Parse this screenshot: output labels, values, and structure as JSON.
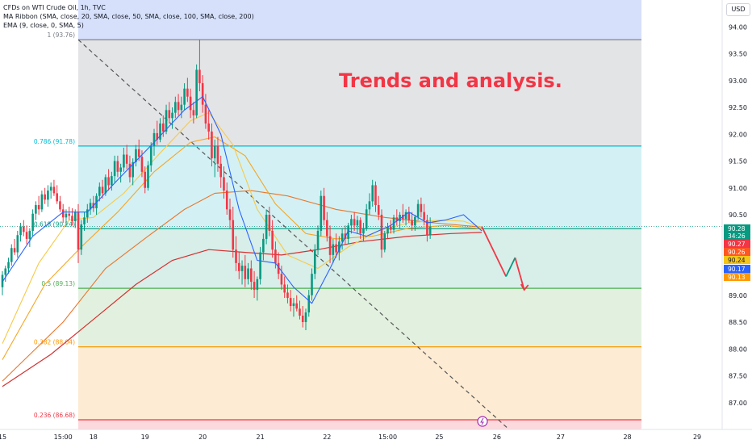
{
  "header": {
    "line1": "CFDs on WTI Crude Oil, 1h, TVC",
    "line2": "MA Ribbon (SMA, close, 20, SMA, close, 50, SMA, close, 100, SMA, close, 200)",
    "line3": "EMA (9, close, 0, SMA, 5)"
  },
  "annotation": "Trends and analysis.",
  "currency": "USD",
  "colors": {
    "up": "#089981",
    "down": "#f23645",
    "ema": "#2962ff",
    "ma20": "#f7c948",
    "ma50": "#f5a623",
    "ma100": "#e8772e",
    "ma200": "#d63030",
    "fib1_line": "#787b86",
    "fib786": "#00bcd4",
    "fib618": "#089981",
    "fib5": "#4caf50",
    "fib382": "#ff9800",
    "fib236": "#f23645"
  },
  "price_badges": [
    {
      "text": "90.28",
      "color": "#089981"
    },
    {
      "text": "34:26",
      "color": "#089981"
    },
    {
      "text": "90.27",
      "color": "#f23645"
    },
    {
      "text": "90.26",
      "color": "#ff5722"
    },
    {
      "text": "90.24",
      "color": "#f5c518"
    },
    {
      "text": "90.17",
      "color": "#2962ff"
    },
    {
      "text": "90.13",
      "color": "#ff9800"
    }
  ],
  "chart_data": {
    "type": "candlestick",
    "symbol": "CFDs on WTI Crude Oil",
    "interval": "1h",
    "ylim": [
      86.5,
      94.5
    ],
    "yticks": [
      87.0,
      87.5,
      88.0,
      88.5,
      89.0,
      89.5,
      90.0,
      90.5,
      91.0,
      91.5,
      92.0,
      92.5,
      93.0,
      93.5,
      94.0
    ],
    "ytick_labels": [
      "87.00",
      "87.50",
      "88.00",
      "88.50",
      "89.00",
      "89.50",
      "90.00",
      "90.50",
      "91.00",
      "91.50",
      "92.00",
      "92.50",
      "93.00",
      "93.50",
      "94.00"
    ],
    "xtick_labels": [
      "15",
      "15:00",
      "18",
      "19",
      "20",
      "21",
      "22",
      "15:00",
      "25",
      "26",
      "27",
      "28",
      "29"
    ],
    "xtick_index": [
      0,
      20,
      30,
      47,
      66,
      85,
      107,
      127,
      144,
      163,
      184,
      206,
      229
    ],
    "fib_levels": [
      {
        "label": "1 (93.76)",
        "price": 93.76,
        "key": "fib1_line"
      },
      {
        "label": "0.786 (91.78)",
        "price": 91.78,
        "key": "fib786"
      },
      {
        "label": "0.618 (90.24)",
        "price": 90.24,
        "key": "fib618"
      },
      {
        "label": "0.5 (89.13)",
        "price": 89.13,
        "key": "fib5"
      },
      {
        "label": "0.382 (88.04)",
        "price": 88.04,
        "key": "fib382"
      },
      {
        "label": "0.236 (86.68)",
        "price": 86.68,
        "key": "fib236"
      }
    ],
    "fib_top_band": 94.5,
    "fib_start_index": 25,
    "trendline": {
      "from": [
        25,
        93.76
      ],
      "to": [
        167,
        86.5
      ]
    },
    "projection": [
      [
        158,
        90.28
      ],
      [
        166,
        89.35
      ],
      [
        169,
        89.7
      ],
      [
        172,
        89.1
      ]
    ],
    "candle_start_index": 0,
    "ohlc": [
      [
        89.15,
        89.45,
        89.0,
        89.38
      ],
      [
        89.38,
        89.55,
        89.25,
        89.5
      ],
      [
        89.5,
        89.7,
        89.4,
        89.62
      ],
      [
        89.62,
        89.95,
        89.55,
        89.88
      ],
      [
        89.88,
        90.05,
        89.75,
        89.8
      ],
      [
        89.8,
        90.2,
        89.7,
        90.12
      ],
      [
        90.12,
        90.35,
        90.0,
        90.28
      ],
      [
        90.28,
        90.4,
        90.1,
        90.18
      ],
      [
        90.18,
        90.3,
        89.95,
        90.05
      ],
      [
        90.05,
        90.25,
        89.9,
        90.2
      ],
      [
        90.2,
        90.6,
        90.1,
        90.52
      ],
      [
        90.52,
        90.75,
        90.4,
        90.68
      ],
      [
        90.68,
        90.85,
        90.5,
        90.6
      ],
      [
        90.6,
        90.95,
        90.55,
        90.88
      ],
      [
        90.88,
        91.0,
        90.7,
        90.78
      ],
      [
        90.78,
        91.05,
        90.65,
        90.95
      ],
      [
        90.95,
        91.1,
        90.8,
        91.02
      ],
      [
        91.02,
        91.15,
        90.85,
        90.9
      ],
      [
        90.9,
        91.05,
        90.7,
        90.75
      ],
      [
        90.75,
        90.85,
        90.55,
        90.6
      ],
      [
        90.6,
        90.7,
        90.35,
        90.45
      ],
      [
        90.45,
        90.6,
        90.3,
        90.52
      ],
      [
        90.52,
        90.65,
        90.4,
        90.48
      ],
      [
        90.48,
        90.62,
        90.3,
        90.38
      ],
      [
        90.38,
        90.6,
        90.25,
        90.55
      ],
      [
        90.55,
        90.7,
        89.6,
        89.85
      ],
      [
        89.85,
        90.4,
        89.75,
        90.32
      ],
      [
        90.32,
        90.55,
        90.2,
        90.45
      ],
      [
        90.45,
        90.7,
        90.35,
        90.6
      ],
      [
        90.6,
        90.8,
        90.5,
        90.72
      ],
      [
        90.72,
        90.85,
        90.55,
        90.62
      ],
      [
        90.62,
        90.9,
        90.5,
        90.85
      ],
      [
        90.85,
        91.1,
        90.75,
        91.02
      ],
      [
        91.02,
        91.15,
        90.8,
        90.9
      ],
      [
        90.9,
        91.25,
        90.85,
        91.2
      ],
      [
        91.2,
        91.35,
        90.95,
        91.05
      ],
      [
        91.05,
        91.3,
        90.95,
        91.22
      ],
      [
        91.22,
        91.6,
        91.1,
        91.5
      ],
      [
        91.5,
        91.6,
        91.2,
        91.3
      ],
      [
        91.3,
        91.45,
        91.1,
        91.38
      ],
      [
        91.38,
        91.75,
        91.3,
        91.62
      ],
      [
        91.62,
        91.8,
        91.35,
        91.45
      ],
      [
        91.45,
        91.6,
        91.1,
        91.2
      ],
      [
        91.2,
        91.55,
        91.05,
        91.48
      ],
      [
        91.48,
        91.8,
        91.4,
        91.72
      ],
      [
        91.72,
        91.9,
        91.5,
        91.58
      ],
      [
        91.58,
        91.7,
        91.2,
        91.3
      ],
      [
        91.3,
        91.4,
        90.9,
        91.0
      ],
      [
        91.0,
        91.5,
        90.95,
        91.42
      ],
      [
        91.42,
        91.85,
        91.3,
        91.78
      ],
      [
        91.78,
        92.1,
        91.6,
        92.02
      ],
      [
        92.02,
        92.25,
        91.8,
        91.9
      ],
      [
        91.9,
        92.3,
        91.85,
        92.2
      ],
      [
        92.2,
        92.35,
        91.95,
        92.05
      ],
      [
        92.05,
        92.55,
        92.0,
        92.45
      ],
      [
        92.45,
        92.6,
        92.2,
        92.3
      ],
      [
        92.3,
        92.5,
        92.1,
        92.4
      ],
      [
        92.4,
        92.7,
        92.3,
        92.6
      ],
      [
        92.6,
        92.75,
        92.35,
        92.45
      ],
      [
        92.45,
        92.7,
        92.3,
        92.55
      ],
      [
        92.55,
        92.95,
        92.45,
        92.85
      ],
      [
        92.85,
        93.05,
        92.6,
        92.7
      ],
      [
        92.7,
        92.85,
        92.3,
        92.45
      ],
      [
        92.45,
        92.6,
        92.2,
        92.35
      ],
      [
        92.35,
        93.3,
        92.3,
        93.2
      ],
      [
        93.2,
        93.76,
        92.8,
        92.95
      ],
      [
        92.95,
        93.1,
        92.4,
        92.55
      ],
      [
        92.55,
        92.75,
        92.1,
        92.2
      ],
      [
        92.2,
        92.45,
        91.9,
        92.05
      ],
      [
        92.05,
        92.2,
        91.4,
        91.55
      ],
      [
        91.55,
        91.9,
        91.2,
        91.78
      ],
      [
        91.78,
        91.95,
        91.3,
        91.45
      ],
      [
        91.45,
        91.6,
        91.0,
        91.2
      ],
      [
        91.2,
        91.4,
        90.8,
        90.95
      ],
      [
        90.95,
        91.1,
        90.5,
        90.6
      ],
      [
        90.6,
        90.8,
        90.25,
        90.4
      ],
      [
        90.4,
        90.65,
        89.7,
        89.85
      ],
      [
        89.85,
        90.1,
        89.45,
        89.6
      ],
      [
        89.6,
        89.8,
        89.3,
        89.45
      ],
      [
        89.45,
        89.65,
        89.2,
        89.55
      ],
      [
        89.55,
        89.75,
        89.15,
        89.3
      ],
      [
        89.3,
        89.6,
        89.2,
        89.5
      ],
      [
        89.5,
        89.65,
        89.1,
        89.25
      ],
      [
        89.25,
        89.45,
        88.95,
        89.1
      ],
      [
        89.1,
        89.35,
        88.9,
        89.3
      ],
      [
        89.3,
        89.9,
        89.2,
        89.8
      ],
      [
        89.8,
        90.15,
        89.65,
        90.05
      ],
      [
        90.05,
        90.6,
        89.95,
        90.5
      ],
      [
        90.5,
        90.65,
        90.1,
        90.2
      ],
      [
        90.2,
        90.4,
        89.7,
        89.85
      ],
      [
        89.85,
        90.0,
        89.5,
        89.6
      ],
      [
        89.6,
        89.8,
        89.3,
        89.4
      ],
      [
        89.4,
        89.55,
        89.1,
        89.2
      ],
      [
        89.2,
        89.35,
        88.95,
        89.05
      ],
      [
        89.05,
        89.2,
        88.85,
        88.95
      ],
      [
        88.95,
        89.1,
        88.7,
        88.8
      ],
      [
        88.8,
        88.95,
        88.6,
        88.85
      ],
      [
        88.85,
        89.0,
        88.7,
        88.75
      ],
      [
        88.75,
        88.9,
        88.55,
        88.62
      ],
      [
        88.62,
        88.8,
        88.4,
        88.5
      ],
      [
        88.5,
        88.75,
        88.35,
        88.68
      ],
      [
        88.68,
        89.1,
        88.6,
        89.0
      ],
      [
        89.0,
        89.5,
        88.9,
        89.4
      ],
      [
        89.4,
        89.95,
        89.3,
        89.85
      ],
      [
        89.85,
        90.3,
        89.75,
        90.2
      ],
      [
        90.2,
        90.95,
        90.1,
        90.85
      ],
      [
        90.85,
        91.0,
        90.3,
        90.4
      ],
      [
        90.4,
        90.55,
        90.0,
        90.1
      ],
      [
        90.1,
        90.3,
        89.6,
        89.75
      ],
      [
        89.75,
        90.05,
        89.6,
        89.95
      ],
      [
        89.95,
        90.15,
        89.7,
        89.8
      ],
      [
        89.8,
        90.1,
        89.65,
        90.0
      ],
      [
        90.0,
        90.25,
        89.85,
        90.15
      ],
      [
        90.15,
        90.3,
        89.95,
        90.05
      ],
      [
        90.05,
        90.35,
        89.95,
        90.3
      ],
      [
        90.3,
        90.5,
        90.15,
        90.42
      ],
      [
        90.42,
        90.55,
        90.2,
        90.3
      ],
      [
        90.3,
        90.48,
        90.15,
        90.4
      ],
      [
        90.4,
        90.45,
        90.05,
        90.15
      ],
      [
        90.15,
        90.35,
        90.0,
        90.25
      ],
      [
        90.25,
        90.7,
        90.2,
        90.6
      ],
      [
        90.6,
        90.9,
        90.5,
        90.75
      ],
      [
        90.75,
        91.15,
        90.65,
        91.05
      ],
      [
        91.05,
        91.12,
        90.55,
        90.68
      ],
      [
        90.68,
        90.85,
        90.4,
        90.5
      ],
      [
        90.5,
        90.6,
        89.7,
        89.85
      ],
      [
        89.85,
        90.2,
        89.8,
        90.15
      ],
      [
        90.15,
        90.35,
        90.05,
        90.28
      ],
      [
        90.28,
        90.4,
        90.15,
        90.22
      ],
      [
        90.22,
        90.5,
        90.15,
        90.45
      ],
      [
        90.45,
        90.6,
        90.3,
        90.38
      ],
      [
        90.38,
        90.55,
        90.25,
        90.5
      ],
      [
        90.5,
        90.7,
        90.35,
        90.42
      ],
      [
        90.42,
        90.6,
        90.3,
        90.55
      ],
      [
        90.55,
        90.65,
        90.35,
        90.4
      ],
      [
        90.4,
        90.55,
        90.2,
        90.3
      ],
      [
        90.3,
        90.5,
        90.2,
        90.46
      ],
      [
        90.46,
        90.78,
        90.4,
        90.7
      ],
      [
        90.7,
        90.82,
        90.45,
        90.55
      ],
      [
        90.55,
        90.7,
        90.3,
        90.4
      ],
      [
        90.4,
        90.5,
        90.0,
        90.12
      ],
      [
        90.12,
        90.45,
        90.05,
        90.28
      ]
    ],
    "ema": [
      [
        0,
        89.25
      ],
      [
        10,
        90.1
      ],
      [
        20,
        90.55
      ],
      [
        28,
        90.55
      ],
      [
        38,
        91.15
      ],
      [
        50,
        91.85
      ],
      [
        60,
        92.45
      ],
      [
        66,
        92.7
      ],
      [
        72,
        92.0
      ],
      [
        78,
        90.6
      ],
      [
        84,
        89.65
      ],
      [
        90,
        89.6
      ],
      [
        96,
        89.15
      ],
      [
        102,
        88.85
      ],
      [
        108,
        89.5
      ],
      [
        114,
        90.2
      ],
      [
        120,
        90.1
      ],
      [
        128,
        90.3
      ],
      [
        134,
        90.55
      ],
      [
        140,
        90.35
      ],
      [
        146,
        90.4
      ],
      [
        152,
        90.5
      ],
      [
        158,
        90.2
      ]
    ],
    "ma20": [
      [
        0,
        88.1
      ],
      [
        12,
        89.6
      ],
      [
        22,
        90.4
      ],
      [
        30,
        90.45
      ],
      [
        40,
        90.9
      ],
      [
        52,
        91.65
      ],
      [
        62,
        92.25
      ],
      [
        68,
        92.4
      ],
      [
        76,
        91.8
      ],
      [
        84,
        90.6
      ],
      [
        94,
        89.75
      ],
      [
        104,
        89.5
      ],
      [
        114,
        89.9
      ],
      [
        124,
        90.2
      ],
      [
        134,
        90.35
      ],
      [
        144,
        90.4
      ],
      [
        152,
        90.38
      ],
      [
        158,
        90.26
      ]
    ],
    "ma50": [
      [
        0,
        87.8
      ],
      [
        14,
        89.2
      ],
      [
        26,
        89.9
      ],
      [
        38,
        90.55
      ],
      [
        50,
        91.3
      ],
      [
        62,
        91.85
      ],
      [
        70,
        91.95
      ],
      [
        80,
        91.6
      ],
      [
        90,
        90.7
      ],
      [
        100,
        90.15
      ],
      [
        110,
        90.05
      ],
      [
        122,
        90.1
      ],
      [
        134,
        90.25
      ],
      [
        146,
        90.3
      ],
      [
        158,
        90.24
      ]
    ],
    "ma100": [
      [
        0,
        87.4
      ],
      [
        20,
        88.5
      ],
      [
        34,
        89.5
      ],
      [
        48,
        90.1
      ],
      [
        60,
        90.6
      ],
      [
        70,
        90.9
      ],
      [
        82,
        90.95
      ],
      [
        94,
        90.85
      ],
      [
        110,
        90.6
      ],
      [
        126,
        90.45
      ],
      [
        142,
        90.35
      ],
      [
        158,
        90.27
      ]
    ],
    "ma200": [
      [
        0,
        87.3
      ],
      [
        16,
        87.9
      ],
      [
        30,
        88.55
      ],
      [
        44,
        89.2
      ],
      [
        56,
        89.65
      ],
      [
        68,
        89.85
      ],
      [
        80,
        89.8
      ],
      [
        92,
        89.75
      ],
      [
        104,
        89.85
      ],
      [
        118,
        90.0
      ],
      [
        134,
        90.1
      ],
      [
        148,
        90.15
      ],
      [
        158,
        90.17
      ]
    ]
  }
}
